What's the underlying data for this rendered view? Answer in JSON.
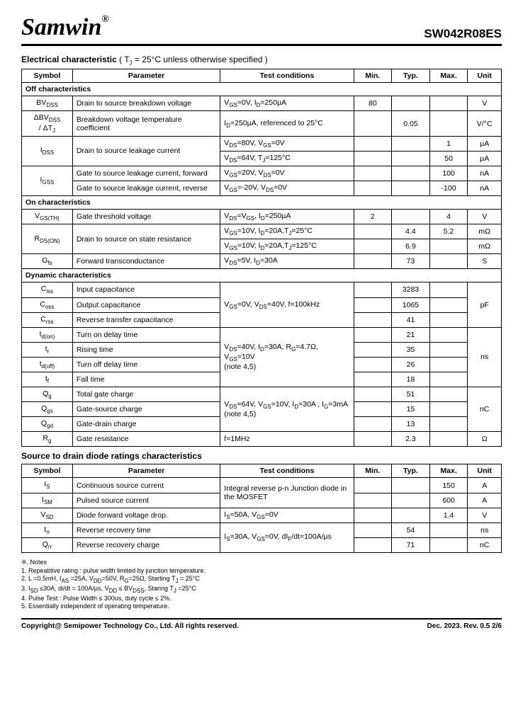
{
  "logo": "Samwin",
  "partno": "SW042R08ES",
  "sec1_title": "Electrical characteristic",
  "sec1_sub": " ( T",
  "sec1_sub2": " = 25°C unless otherwise specified )",
  "h_sym": "Symbol",
  "h_param": "Parameter",
  "h_cond": "Test conditions",
  "h_min": "Min.",
  "h_typ": "Typ.",
  "h_max": "Max.",
  "h_unit": "Unit",
  "sh_off": "Off characteristics",
  "sh_on": "On characteristics",
  "sh_dyn": "Dynamic characteristics",
  "r1_s": "BV",
  "r1_sub": "DSS",
  "r1_p": "Drain to source breakdown voltage",
  "r1_c": "V",
  "r1_c2": "=0V, I",
  "r1_c3": "=250µA",
  "r1_min": "80",
  "r1_u": "V",
  "r2_s": "ΔBV",
  "r2_sub": "DSS",
  "r2_s2": "/ ΔT",
  "r2_sub2": "J",
  "r2_p": "Breakdown voltage temperature coefficient",
  "r2_c": "I",
  "r2_c2": "=250µA, referenced to 25°C",
  "r2_typ": "0.05",
  "r2_u": "V/°C",
  "r3_s": "I",
  "r3_sub": "DSS",
  "r3_p": "Drain to source leakage current",
  "r3_c1": "V",
  "r3_c1b": "=80V, V",
  "r3_c1c": "=0V",
  "r3a_max": "1",
  "r3a_u": "µA",
  "r3_c2": "V",
  "r3_c2b": "=64V, T",
  "r3_c2c": "=125°C",
  "r3b_max": "50",
  "r3b_u": "µA",
  "r4_s": "I",
  "r4_sub": "GSS",
  "r4_p1": "Gate to source leakage current, forward",
  "r4_c1": "V",
  "r4_c1b": "=20V, V",
  "r4_c1c": "=0V",
  "r4a_max": "100",
  "r4a_u": "nA",
  "r4_p2": "Gate to source leakage current, reverse",
  "r4_c2": "V",
  "r4_c2b": "=-20V, V",
  "r4_c2c": "=0V",
  "r4b_max": "-100",
  "r4b_u": "nA",
  "r5_s": "V",
  "r5_sub": "GS(TH)",
  "r5_p": "Gate threshold voltage",
  "r5_c": "V",
  "r5_c2": "=V",
  "r5_c3": ", I",
  "r5_c4": "=250µA",
  "r5_min": "2",
  "r5_max": "4",
  "r5_u": "V",
  "r6_s": "R",
  "r6_sub": "DS(ON)",
  "r6_p": "Drain to source on state resistance",
  "r6_c1": "V",
  "r6_c1b": "=10V, I",
  "r6_c1c": "=20A,T",
  "r6_c1d": "=25°C",
  "r6a_typ": "4.4",
  "r6a_max": "5.2",
  "r6a_u": "mΩ",
  "r6_c2": "V",
  "r6_c2b": "=10V, I",
  "r6_c2c": "=20A,T",
  "r6_c2d": "=125°C",
  "r6b_typ": "6.9",
  "r6b_u": "mΩ",
  "r7_s": "G",
  "r7_sub": "fs",
  "r7_p": "Forward transconductance",
  "r7_c": "V",
  "r7_c2": "=5V, I",
  "r7_c3": "=30A",
  "r7_typ": "73",
  "r7_u": "S",
  "r8_s": "C",
  "r8_sub": "iss",
  "r8_p": "Input capacitance",
  "r8_c": "V",
  "r8_c2": "=0V, V",
  "r8_c3": "=40V, f=100kHz",
  "r8_typ": "3283",
  "r8_u": "pF",
  "r9_s": "C",
  "r9_sub": "oss",
  "r9_p": "Output capacitance",
  "r9_typ": "1065",
  "r10_s": "C",
  "r10_sub": "rss",
  "r10_p": "Reverse transfer capacitance",
  "r10_typ": "41",
  "r11_s": "t",
  "r11_sub": "d(on)",
  "r11_p": "Turn on delay time",
  "r11_c": "V",
  "r11_c2": "=40V, I",
  "r11_c3": "=30A, R",
  "r11_c4": "=4.7Ω, V",
  "r11_c5": "=10V",
  "r11_c6": "(note 4,5)",
  "r11_typ": "21",
  "r11_u": "ns",
  "r12_s": "t",
  "r12_sub": "r",
  "r12_p": "Rising time",
  "r12_typ": "35",
  "r13_s": "t",
  "r13_sub": "d(off)",
  "r13_p": "Turn off delay time",
  "r13_typ": "26",
  "r14_s": "t",
  "r14_sub": "f",
  "r14_p": "Fall time",
  "r14_typ": "18",
  "r15_s": "Q",
  "r15_sub": "g",
  "r15_p": "Total gate charge",
  "r15_c": "V",
  "r15_c2": "=64V, V",
  "r15_c3": "=10V, I",
  "r15_c4": "=30A , I",
  "r15_c5": "=3mA",
  "r15_c6": "(note 4,5)",
  "r15_typ": "51",
  "r15_u": "nC",
  "r16_s": "Q",
  "r16_sub": "gs",
  "r16_p": "Gate-source charge",
  "r16_typ": "15",
  "r17_s": "Q",
  "r17_sub": "gd",
  "r17_p": "Gate-drain charge",
  "r17_typ": "13",
  "r18_s": "R",
  "r18_sub": "g",
  "r18_p": "Gate resistance",
  "r18_c": "f=1MHz",
  "r18_typ": "2.3",
  "r18_u": "Ω",
  "sec2_title": "Source to drain diode ratings characteristics",
  "d1_s": "I",
  "d1_sub": "S",
  "d1_p": "Continuous source current",
  "d1_c": "Integral reverse p-n Junction diode in the MOSFET",
  "d1_max": "150",
  "d1_u": "A",
  "d2_s": "I",
  "d2_sub": "SM",
  "d2_p": "Pulsed source current",
  "d2_max": "600",
  "d2_u": "A",
  "d3_s": "V",
  "d3_sub": "SD",
  "d3_p": "Diode forward voltage drop.",
  "d3_c": "I",
  "d3_c2": "=50A, V",
  "d3_c3": "=0V",
  "d3_max": "1.4",
  "d3_u": "V",
  "d4_s": "t",
  "d4_sub": "rr",
  "d4_p": "Reverse recovery time",
  "d4_c": "I",
  "d4_c2": "=30A, V",
  "d4_c3": "=0V, dI",
  "d4_c4": "/dt=100A/µs",
  "d4_typ": "54",
  "d4_u": "ns",
  "d5_s": "Q",
  "d5_sub": "rr",
  "d5_p": "Reverse recovery charge",
  "d5_typ": "71",
  "d5_u": "nC",
  "notes_h": "※. Notes",
  "n1": "1.    Repeatitive rating : pulse width limited by junction temperature.",
  "n2": "2.    L =0.5mH, I",
  "n2b": " =25A, V",
  "n2c": "=50V, R",
  "n2d": "=25Ω, Starting T",
  "n2e": " = 25°C",
  "n3": "3.    I",
  "n3b": " ≤30A, di/dt = 100A/µs, V",
  "n3c": " ≤ BV",
  "n3d": ", Staring T",
  "n3e": " =25°C",
  "n4": "4.    Pulse Test : Pulse Width ≤ 300us, duty cycle ≤ 2%.",
  "n5": "5.    Essentially independent of operating temperature.",
  "foot_l": "Copyright@ Semipower Technology Co., Ltd. All rights reserved.",
  "foot_r": "Dec. 2023. Rev. 0.5   2/6"
}
